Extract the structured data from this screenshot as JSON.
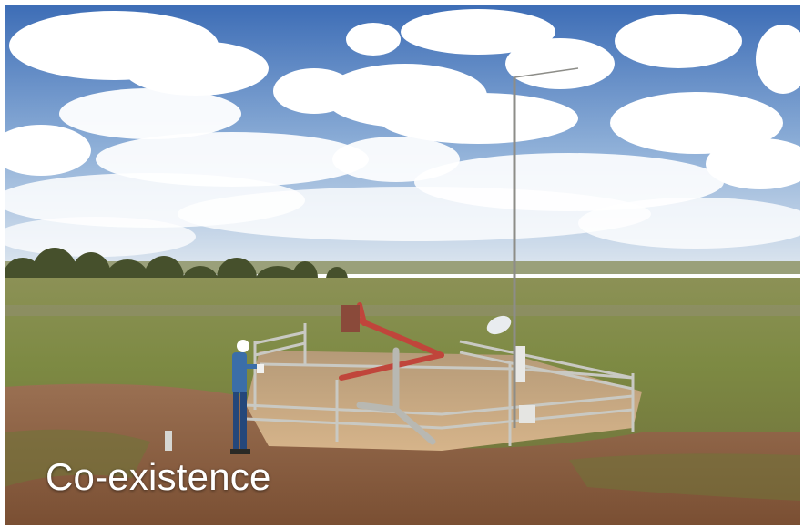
{
  "photo": {
    "caption": "Co-existence",
    "colors": {
      "sky_top": "#3f6fb8",
      "sky_bottom": "#d8e3ef",
      "cloud": "#ffffff",
      "grass": "#7f8c45",
      "soil": "#8a5c3d",
      "pad": "#c9a980",
      "pipe_red": "#c2453c",
      "fence": "#c7c7c2",
      "worker_shirt": "#3b6ea8"
    }
  }
}
